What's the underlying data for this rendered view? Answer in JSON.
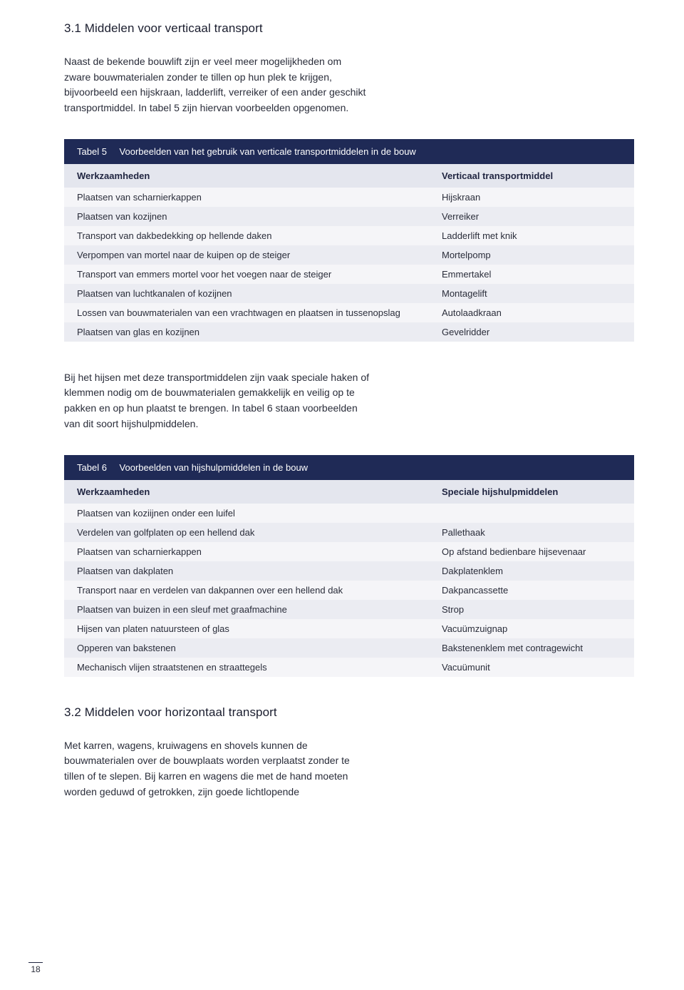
{
  "section1": {
    "heading": "3.1 Middelen voor verticaal transport",
    "para": "Naast de bekende bouwlift zijn er veel meer mogelijkheden om zware bouwmaterialen zonder te tillen op hun plek te krijgen, bijvoorbeeld een hijskraan, ladderlift, verreiker of een ander geschikt transportmiddel. In tabel 5 zijn hiervan voorbeelden opgenomen."
  },
  "table5": {
    "number": "Tabel 5",
    "title": "Voorbeelden van het gebruik van verticale transportmiddelen in de bouw",
    "col1": "Werkzaamheden",
    "col2": "Verticaal transportmiddel",
    "rows": [
      {
        "c1": "Plaatsen van scharnierkappen",
        "c2": "Hijskraan"
      },
      {
        "c1": "Plaatsen van kozijnen",
        "c2": "Verreiker"
      },
      {
        "c1": "Transport van dakbedekking op hellende daken",
        "c2": "Ladderlift met knik"
      },
      {
        "c1": "Verpompen van mortel naar de kuipen op de steiger",
        "c2": "Mortelpomp"
      },
      {
        "c1": "Transport van emmers mortel voor het voegen naar de steiger",
        "c2": "Emmertakel"
      },
      {
        "c1": "Plaatsen van luchtkanalen of kozijnen",
        "c2": "Montagelift"
      },
      {
        "c1": "Lossen van bouwmaterialen van een vrachtwagen en plaatsen in tussenopslag",
        "c2": "Autolaadkraan"
      },
      {
        "c1": "Plaatsen van glas en kozijnen",
        "c2": "Gevelridder"
      }
    ]
  },
  "mid_para": "Bij het hijsen met deze transportmiddelen zijn vaak speciale haken of klemmen nodig om de bouwmaterialen gemakkelijk en veilig op te pakken en op hun plaatst te brengen. In tabel 6 staan voorbeelden van dit soort hijshulpmiddelen.",
  "table6": {
    "number": "Tabel 6",
    "title": "Voorbeelden van hijshulpmiddelen in de bouw",
    "col1": "Werkzaamheden",
    "col2": "Speciale hijshulpmiddelen",
    "rows": [
      {
        "c1": "Plaatsen van koziijnen onder een luifel",
        "c2": ""
      },
      {
        "c1": "Verdelen van golfplaten op een hellend dak",
        "c2": "Pallethaak"
      },
      {
        "c1": "Plaatsen van scharnierkappen",
        "c2": "Op afstand bedienbare hijsevenaar"
      },
      {
        "c1": "Plaatsen van dakplaten",
        "c2": "Dakplatenklem"
      },
      {
        "c1": "Transport naar en verdelen van dakpannen over een hellend dak",
        "c2": "Dakpancassette"
      },
      {
        "c1": "Plaatsen van buizen in een sleuf met graafmachine",
        "c2": "Strop"
      },
      {
        "c1": "Hijsen van platen natuursteen of glas",
        "c2": "Vacuümzuignap"
      },
      {
        "c1": "Opperen van bakstenen",
        "c2": "Bakstenenklem met contragewicht"
      },
      {
        "c1": "Mechanisch vlijen straatstenen en straattegels",
        "c2": "Vacuümunit"
      }
    ]
  },
  "section2": {
    "heading": "3.2  Middelen voor horizontaal transport",
    "para": "Met karren, wagens, kruiwagens en shovels kunnen de bouwmaterialen over de bouwplaats worden verplaatst zonder te tillen of te slepen. Bij karren en wagens die met de hand moeten worden geduwd of getrokken, zijn goede lichtlopende"
  },
  "page_number": "18",
  "colors": {
    "table_title_bg": "#1f2a56",
    "table_head_bg": "#e4e6ee",
    "row_even_bg": "#f5f5f8",
    "row_odd_bg": "#ebecf2",
    "text": "#2a2d3a",
    "page_bg": "#ffffff"
  },
  "typography": {
    "heading_fontsize": 17,
    "body_fontsize": 14,
    "table_fontsize": 13,
    "line_height": 1.55
  }
}
